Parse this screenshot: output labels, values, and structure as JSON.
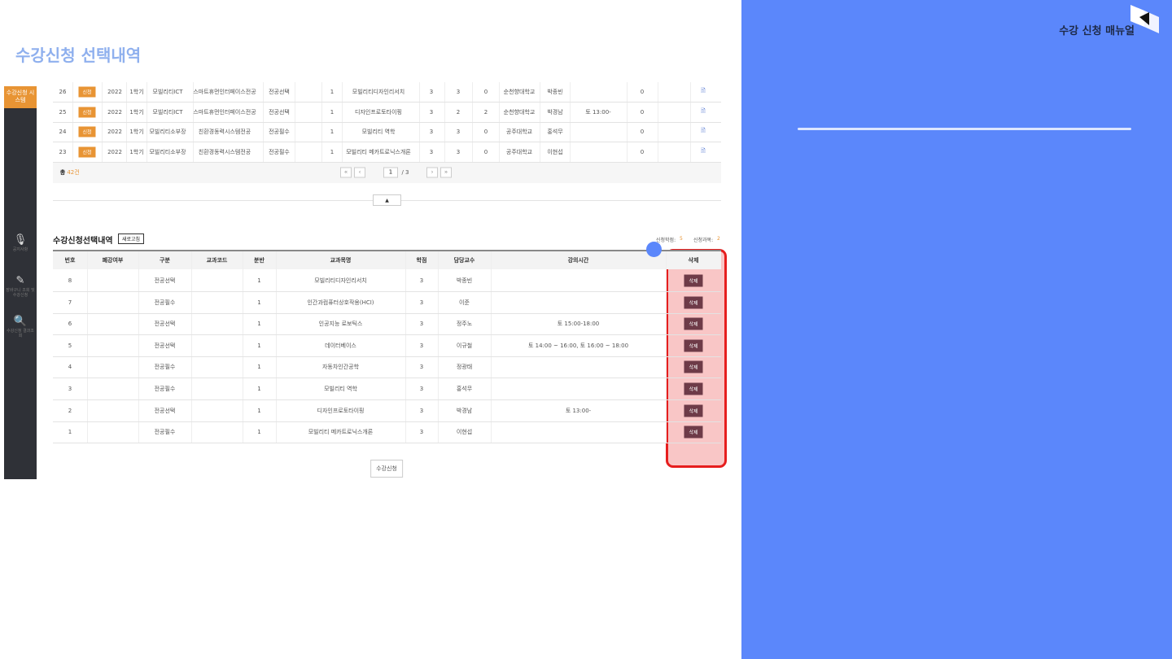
{
  "slide": {
    "title": "수강신청 선택내역",
    "brand": "수강 신청 매뉴얼"
  },
  "sidebar": {
    "system": "수강신청 시스템",
    "menu": [
      "공지사항",
      "장바구니 조회 및 수강신청",
      "수강신청 결과조회"
    ]
  },
  "top_table": {
    "rows": [
      {
        "no": 26,
        "status": "신청",
        "year": 2022,
        "term": "1학기",
        "dept": "모빌리티ICT",
        "major": "스마트휴먼인터페이스전공",
        "type": "전공선택",
        "section": 1,
        "course": "모빌리티디자인리서치",
        "credit": 3,
        "theory": 3,
        "practice": 0,
        "univ": "순천향대학교",
        "prof": "박종빈",
        "count": 0
      },
      {
        "no": 25,
        "status": "신청",
        "year": 2022,
        "term": "1학기",
        "dept": "모빌리티ICT",
        "major": "스마트휴먼인터페이스전공",
        "type": "전공선택",
        "section": 1,
        "course": "디자인프로토타이핑",
        "credit": 3,
        "theory": 2,
        "practice": 2,
        "univ": "순천향대학교",
        "prof": "박경남",
        "time": "토 13:00-",
        "count": 0
      },
      {
        "no": 24,
        "status": "신청",
        "year": 2022,
        "term": "1학기",
        "dept": "모빌리티소부장",
        "major": "친환경동력시스템전공",
        "type": "전공필수",
        "section": 1,
        "course": "모빌리티 역학",
        "credit": 3,
        "theory": 3,
        "practice": 0,
        "univ": "공주대학교",
        "prof": "홍석무",
        "count": 0
      },
      {
        "no": 23,
        "status": "신청",
        "year": 2022,
        "term": "1학기",
        "dept": "모빌리티소부장",
        "major": "친환경동력시스템전공",
        "type": "전공필수",
        "section": 1,
        "course": "모빌리티 메카트로닉스개론",
        "credit": 3,
        "theory": 3,
        "practice": 0,
        "univ": "공주대학교",
        "prof": "이현섭",
        "count": 0
      }
    ],
    "total_prefix": "총",
    "total": "42건",
    "nav": [
      "«",
      "‹",
      "›",
      "»"
    ],
    "page": 1,
    "pages": "/ 3"
  },
  "selection": {
    "title": "수강신청선택내역",
    "refresh": "새로고침",
    "credits_label": "신청학점:",
    "credits": 5,
    "courses_label": "신청과목:",
    "courses": 2,
    "headers": [
      "번호",
      "폐강여부",
      "구분",
      "교과코드",
      "분반",
      "교과목명",
      "학점",
      "담당교수",
      "강의시간",
      "삭제"
    ],
    "delete": "삭제",
    "rows": [
      {
        "no": 8,
        "type": "전공선택",
        "section": 1,
        "course": "모빌리티디자인리서치",
        "credit": 3,
        "prof": "박종빈"
      },
      {
        "no": 7,
        "type": "전공필수",
        "section": 1,
        "course": "인간과컴퓨터상호작용(HCI)",
        "credit": 3,
        "prof": "이준"
      },
      {
        "no": 6,
        "type": "전공선택",
        "section": 1,
        "course": "인공지능 로보틱스",
        "credit": 3,
        "prof": "정주노",
        "time": "토 15:00-18:00"
      },
      {
        "no": 5,
        "type": "전공선택",
        "section": 1,
        "course": "데이터베이스",
        "credit": 3,
        "prof": "이규철",
        "time": "토 14:00 ~ 16:00, 토 16:00 ~ 18:00"
      },
      {
        "no": 4,
        "type": "전공필수",
        "section": 1,
        "course": "자동차인간공학",
        "credit": 3,
        "prof": "정광태"
      },
      {
        "no": 3,
        "type": "전공필수",
        "section": 1,
        "course": "모빌리티 역학",
        "credit": 3,
        "prof": "홍석무"
      },
      {
        "no": 2,
        "type": "전공선택",
        "section": 1,
        "course": "디자인프로토타이핑",
        "credit": 3,
        "prof": "박경남",
        "time": "토 13:00-"
      },
      {
        "no": 1,
        "type": "전공필수",
        "section": 1,
        "course": "모빌리티 메카트로닉스개론",
        "credit": 3,
        "prof": "이현섭"
      }
    ],
    "submit": "수강신청"
  }
}
